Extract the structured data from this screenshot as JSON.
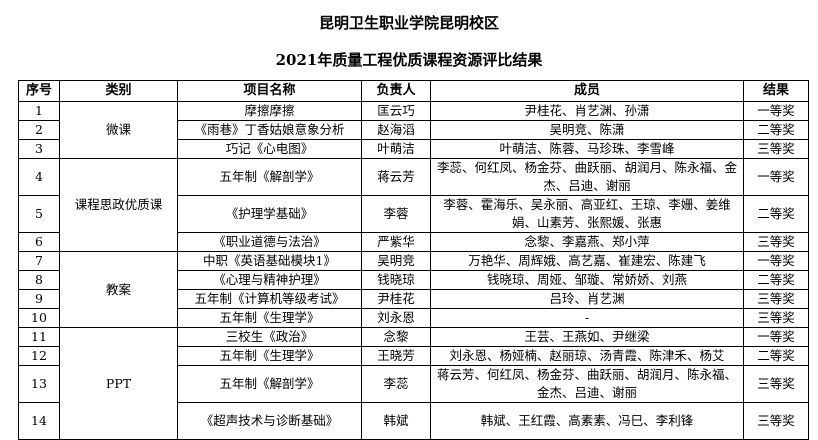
{
  "title": "昆明卫生职业学院昆明校区",
  "subtitle": "2021年质量工程优质课程资源评比结果",
  "headers": [
    "序号",
    "类别",
    "项目名称",
    "负责人",
    "成员",
    "结果"
  ],
  "categories": [
    "微课",
    "课程思政优质课",
    "教案",
    "PPT"
  ],
  "rows": [
    {
      "no": "1",
      "name": "摩擦摩擦",
      "lead": "匡云巧",
      "members": "尹桂花、肖艺渊、孙潇",
      "result": "一等奖"
    },
    {
      "no": "2",
      "name": "《雨巷》丁香姑娘意象分析",
      "lead": "赵海滔",
      "members": "吴明竞、陈潇",
      "result": "二等奖"
    },
    {
      "no": "3",
      "name": "巧记《心电图》",
      "lead": "叶萌洁",
      "members": "叶萌洁、陈蓉、马珍珠、李雪峰",
      "result": "三等奖"
    },
    {
      "no": "4",
      "name": "五年制《解剖学》",
      "lead": "蒋云芳",
      "members": "李蕊、何红凤、杨金芬、曲跃丽、胡润月、陈永福、金杰、吕迪、谢丽",
      "result": "一等奖"
    },
    {
      "no": "5",
      "name": "《护理学基础》",
      "lead": "李蓉",
      "members": "李蓉、霍海乐、吴永丽、高亚红、王琼、李姗、姜维娟、山素芳、张熙媛、张惠",
      "result": "二等奖"
    },
    {
      "no": "6",
      "name": "《职业道德与法治》",
      "lead": "严紫华",
      "members": "念黎、李嘉燕、郑小萍",
      "result": "三等奖"
    },
    {
      "no": "7",
      "name": "中职《英语基础模块1》",
      "lead": "吴明竞",
      "members": "万艳华、周辉娥、高艺嘉、崔建宏、陈建飞",
      "result": "一等奖"
    },
    {
      "no": "8",
      "name": "《心理与精神护理》",
      "lead": "钱晓琼",
      "members": "钱晓琼、周娅、邹璇、常娇娇、刘燕",
      "result": "二等奖"
    },
    {
      "no": "9",
      "name": "五年制《计算机等级考试》",
      "lead": "尹桂花",
      "members": "吕玲、肖艺渊",
      "result": "三等奖"
    },
    {
      "no": "10",
      "name": "五年制《生理学》",
      "lead": "刘永恩",
      "members": "-",
      "result": "三等奖"
    },
    {
      "no": "11",
      "name": "三校生《政治》",
      "lead": "念黎",
      "members": "王芸、王燕如、尹继梁",
      "result": "一等奖"
    },
    {
      "no": "12",
      "name": "五年制《生理学》",
      "lead": "王晓芳",
      "members": "刘永恩、杨娅楠、赵丽琼、汤青霞、陈津禾、杨艾",
      "result": "二等奖"
    },
    {
      "no": "13",
      "name": "五年制《解剖学》",
      "lead": "李蕊",
      "members": "蒋云芳、何红凤、杨金芬、曲跃丽、胡润月、陈永福、金杰、吕迪、谢丽",
      "result": "三等奖"
    },
    {
      "no": "14",
      "name": "《超声技术与诊断基础》",
      "lead": "韩斌",
      "members": "韩斌、王红霞、高素素、冯巳、李利锋",
      "result": "三等奖"
    }
  ]
}
